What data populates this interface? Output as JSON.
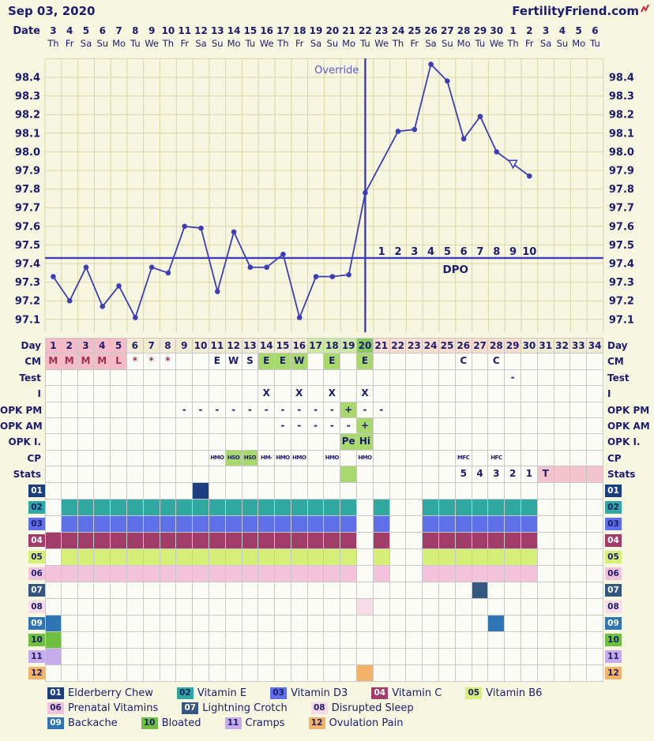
{
  "header": {
    "cycle_start_date": "Sep 03, 2020",
    "site_name": "FertilityFriend.com"
  },
  "colors": {
    "page_bg": "#f7f6e0",
    "navy": "#1c1c6e",
    "chart_line": "#3d3db8",
    "override_text": "#5a5ad0",
    "gridline": "#dbd6a6",
    "cell_border": "#c8c8c8",
    "menses_bg": "#f3bcc6",
    "menses_text": "#9c2f56",
    "beige": "#efead0",
    "fertile": "#cfe9a5",
    "ovulation": "#86c95e",
    "luteal": "#f6dccd",
    "green_cell": "#a9d96e",
    "pink_cell": "#f3c3ce",
    "logo_mark_red": "#cc2233"
  },
  "chart_data": {
    "type": "line",
    "title": "Basal body temperature chart",
    "x_axis_label": "Date",
    "cycle_days": 34,
    "dates": [
      "3",
      "4",
      "5",
      "6",
      "7",
      "8",
      "9",
      "10",
      "11",
      "12",
      "13",
      "14",
      "15",
      "16",
      "17",
      "18",
      "19",
      "20",
      "21",
      "22",
      "23",
      "24",
      "25",
      "26",
      "27",
      "28",
      "29",
      "30",
      "1",
      "2",
      "3",
      "4",
      "5",
      "6"
    ],
    "weekdays": [
      "Th",
      "Fr",
      "Sa",
      "Su",
      "Mo",
      "Tu",
      "We",
      "Th",
      "Fr",
      "Sa",
      "Su",
      "Mo",
      "Tu",
      "We",
      "Th",
      "Fr",
      "Sa",
      "Su",
      "Mo",
      "Tu",
      "We",
      "Th",
      "Fr",
      "Sa",
      "Su",
      "Mo",
      "Tu",
      "We",
      "Th",
      "Fr",
      "Sa",
      "Su",
      "Mo",
      "Tu"
    ],
    "y_ticks": [
      "98.4",
      "98.3",
      "98.2",
      "98.1",
      "98.0",
      "97.9",
      "97.8",
      "97.7",
      "97.6",
      "97.5",
      "97.4",
      "97.3",
      "97.2",
      "97.1"
    ],
    "ylim": [
      97.03,
      98.5
    ],
    "temps_f": [
      97.33,
      97.2,
      97.38,
      97.17,
      97.28,
      97.11,
      97.38,
      97.35,
      97.6,
      97.59,
      97.25,
      97.57,
      97.38,
      97.38,
      97.45,
      97.11,
      97.33,
      97.33,
      97.34,
      97.78,
      null,
      98.11,
      98.12,
      98.47,
      98.38,
      98.07,
      98.19,
      98.0,
      null,
      97.87,
      null,
      null,
      null,
      null
    ],
    "coverline_f": 97.43,
    "ovulation_day": 20,
    "override_label": "Override",
    "dpo_axis_label": "DPO",
    "dpo_labels": [
      "1",
      "2",
      "3",
      "4",
      "5",
      "6",
      "7",
      "8",
      "9",
      "10"
    ],
    "missing_temp_day": 29,
    "grid": "on",
    "y_axis_sides": "both"
  },
  "table": {
    "day_row": {
      "label": "Day",
      "default_bg": "beige",
      "numbers": [
        "1",
        "2",
        "3",
        "4",
        "5",
        "6",
        "7",
        "8",
        "9",
        "10",
        "11",
        "12",
        "13",
        "14",
        "15",
        "16",
        "17",
        "18",
        "19",
        "20",
        "21",
        "22",
        "23",
        "24",
        "25",
        "26",
        "27",
        "28",
        "29",
        "30",
        "31",
        "32",
        "33",
        "34"
      ],
      "bands": [
        {
          "from": 1,
          "to": 5,
          "bg": "menses"
        },
        {
          "from": 17,
          "to": 19,
          "bg": "fertile"
        },
        {
          "from": 20,
          "to": 20,
          "bg": "ovulation"
        },
        {
          "from": 21,
          "to": 29,
          "bg": "luteal"
        }
      ]
    },
    "data_rows": [
      {
        "label": "CM",
        "entries": [
          {
            "d": 1,
            "t": "M",
            "bg": "menses",
            "tc": "menses"
          },
          {
            "d": 2,
            "t": "M",
            "bg": "menses",
            "tc": "menses"
          },
          {
            "d": 3,
            "t": "M",
            "bg": "menses",
            "tc": "menses"
          },
          {
            "d": 4,
            "t": "M",
            "bg": "menses",
            "tc": "menses"
          },
          {
            "d": 5,
            "t": "L",
            "bg": "menses",
            "tc": "menses"
          },
          {
            "d": 6,
            "t": "*",
            "tc": "menses"
          },
          {
            "d": 7,
            "t": "*",
            "tc": "menses"
          },
          {
            "d": 8,
            "t": "*",
            "tc": "menses"
          },
          {
            "d": 11,
            "t": "E"
          },
          {
            "d": 12,
            "t": "W"
          },
          {
            "d": 13,
            "t": "S"
          },
          {
            "d": 14,
            "t": "E",
            "bg": "green"
          },
          {
            "d": 15,
            "t": "E",
            "bg": "green"
          },
          {
            "d": 16,
            "t": "W",
            "bg": "green"
          },
          {
            "d": 18,
            "t": "E",
            "bg": "green"
          },
          {
            "d": 20,
            "t": "E",
            "bg": "green"
          },
          {
            "d": 26,
            "t": "C"
          },
          {
            "d": 28,
            "t": "C"
          }
        ]
      },
      {
        "label": "Test",
        "entries": [
          {
            "d": 29,
            "t": "-"
          }
        ]
      },
      {
        "label": "I",
        "entries": [
          {
            "d": 14,
            "t": "X"
          },
          {
            "d": 16,
            "t": "X"
          },
          {
            "d": 18,
            "t": "X"
          },
          {
            "d": 20,
            "t": "X"
          }
        ]
      },
      {
        "label": "OPK PM",
        "entries": [
          {
            "d": 9,
            "t": "-"
          },
          {
            "d": 10,
            "t": "-"
          },
          {
            "d": 11,
            "t": "-"
          },
          {
            "d": 12,
            "t": "-"
          },
          {
            "d": 13,
            "t": "-"
          },
          {
            "d": 14,
            "t": "-"
          },
          {
            "d": 15,
            "t": "-"
          },
          {
            "d": 16,
            "t": "-"
          },
          {
            "d": 17,
            "t": "-"
          },
          {
            "d": 18,
            "t": "-"
          },
          {
            "d": 19,
            "t": "+",
            "bg": "green"
          },
          {
            "d": 20,
            "t": "-"
          },
          {
            "d": 21,
            "t": "-"
          }
        ]
      },
      {
        "label": "OPK AM",
        "entries": [
          {
            "d": 15,
            "t": "-"
          },
          {
            "d": 16,
            "t": "-"
          },
          {
            "d": 17,
            "t": "-"
          },
          {
            "d": 18,
            "t": "-"
          },
          {
            "d": 19,
            "t": "-"
          },
          {
            "d": 20,
            "t": "+",
            "bg": "green"
          }
        ]
      },
      {
        "label": "OPK I.",
        "entries": [
          {
            "d": 19,
            "t": "Pe",
            "bg": "green"
          },
          {
            "d": 20,
            "t": "Hi",
            "bg": "green"
          }
        ]
      },
      {
        "label": "CP",
        "small": true,
        "entries": [
          {
            "d": 11,
            "t": "HMO"
          },
          {
            "d": 12,
            "t": "HSO",
            "bg": "green"
          },
          {
            "d": 13,
            "t": "HSO",
            "bg": "green"
          },
          {
            "d": 14,
            "t": "HM-"
          },
          {
            "d": 15,
            "t": "HMO"
          },
          {
            "d": 16,
            "t": "HMO"
          },
          {
            "d": 18,
            "t": "HMO"
          },
          {
            "d": 20,
            "t": "HMO"
          },
          {
            "d": 26,
            "t": "MFC"
          },
          {
            "d": 28,
            "t": "HFC"
          }
        ]
      },
      {
        "label": "Stats",
        "entries": [
          {
            "d": 19,
            "bg": "green"
          },
          {
            "d": 26,
            "t": "5"
          },
          {
            "d": 27,
            "t": "4"
          },
          {
            "d": 28,
            "t": "3"
          },
          {
            "d": 29,
            "t": "2"
          },
          {
            "d": 30,
            "t": "1"
          },
          {
            "d": 31,
            "t": "T",
            "bg": "pink"
          },
          {
            "d": 32,
            "bg": "pink"
          },
          {
            "d": 33,
            "bg": "pink"
          },
          {
            "d": 34,
            "bg": "pink"
          }
        ]
      }
    ]
  },
  "tracker": {
    "rows": [
      {
        "num": "01",
        "label": "Elderberry Chew",
        "color": "#1b3f7e",
        "text_on_color": "light",
        "ranges": [
          [
            10
          ]
        ]
      },
      {
        "num": "02",
        "label": "Vitamin E",
        "color": "#2fa8a0",
        "text_on_color": "dark",
        "ranges": [
          [
            2,
            19
          ],
          [
            21
          ],
          [
            24,
            30
          ]
        ]
      },
      {
        "num": "03",
        "label": "Vitamin D3",
        "color": "#5f6fe8",
        "text_on_color": "dark",
        "ranges": [
          [
            2,
            19
          ],
          [
            21
          ],
          [
            24,
            30
          ]
        ]
      },
      {
        "num": "04",
        "label": "Vitamin C",
        "color": "#a13d68",
        "text_on_color": "light",
        "ranges": [
          [
            1,
            19
          ],
          [
            21
          ],
          [
            24,
            30
          ]
        ]
      },
      {
        "num": "05",
        "label": "Vitamin B6",
        "color": "#d6ef77",
        "text_on_color": "dark",
        "ranges": [
          [
            2,
            19
          ],
          [
            21
          ],
          [
            24,
            30
          ]
        ]
      },
      {
        "num": "06",
        "label": "Prenatal Vitamins",
        "color": "#f2c3da",
        "text_on_color": "dark",
        "ranges": [
          [
            1,
            19
          ],
          [
            21
          ],
          [
            24,
            30
          ]
        ]
      },
      {
        "num": "07",
        "label": "Lightning Crotch",
        "color": "#35567e",
        "text_on_color": "light",
        "ranges": [
          [
            27
          ]
        ]
      },
      {
        "num": "08",
        "label": "Disrupted Sleep",
        "color": "#f7dbe7",
        "text_on_color": "dark",
        "ranges": [
          [
            20
          ]
        ]
      },
      {
        "num": "09",
        "label": "Backache",
        "color": "#2f74b5",
        "text_on_color": "light",
        "ranges": [
          [
            1
          ],
          [
            28
          ]
        ]
      },
      {
        "num": "10",
        "label": "Bloated",
        "color": "#6cbf3f",
        "text_on_color": "dark",
        "ranges": [
          [
            1
          ]
        ]
      },
      {
        "num": "11",
        "label": "Cramps",
        "color": "#c5abe8",
        "text_on_color": "dark",
        "ranges": [
          [
            1
          ]
        ]
      },
      {
        "num": "12",
        "label": "Ovulation Pain",
        "color": "#f2b267",
        "text_on_color": "dark",
        "ranges": [
          [
            20
          ]
        ]
      }
    ]
  },
  "legend": {
    "rows": [
      [
        "01",
        "02",
        "03",
        "04",
        "05"
      ],
      [
        "06",
        "07",
        "08"
      ],
      [
        "09",
        "10",
        "11",
        "12"
      ]
    ]
  }
}
